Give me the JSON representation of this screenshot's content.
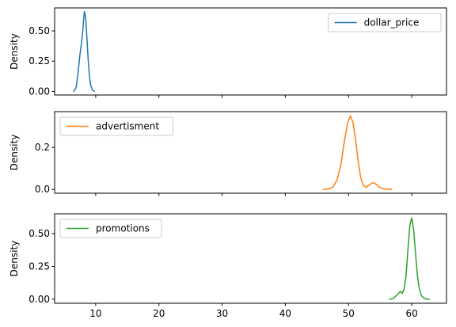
{
  "chart_data": [
    {
      "type": "line",
      "ylabel": "Density",
      "legend_placement": "upper right",
      "xlim": [
        3.5,
        65.5
      ],
      "ylim": [
        -0.03,
        0.69
      ],
      "yticks": [
        0.0,
        0.25,
        0.5
      ],
      "ytick_labels": [
        "0.00",
        "0.25",
        "0.50"
      ],
      "series": [
        {
          "name": "dollar_price",
          "color": "#1f77b4",
          "x": [
            6.5,
            6.9,
            7.2,
            7.5,
            7.7,
            7.9,
            8.1,
            8.2,
            8.4,
            8.6,
            8.8,
            9.0,
            9.2,
            9.5,
            9.8
          ],
          "y": [
            0.0,
            0.03,
            0.15,
            0.3,
            0.38,
            0.47,
            0.6,
            0.66,
            0.62,
            0.45,
            0.27,
            0.13,
            0.05,
            0.01,
            0.0
          ]
        }
      ]
    },
    {
      "type": "line",
      "ylabel": "Density",
      "legend_placement": "upper left",
      "xlim": [
        3.5,
        65.5
      ],
      "ylim": [
        -0.018,
        0.37
      ],
      "yticks": [
        0.0,
        0.2
      ],
      "ytick_labels": [
        "0.0",
        "0.2"
      ],
      "series": [
        {
          "name": "advertisment",
          "color": "#ff7f0e",
          "x": [
            46.0,
            46.8,
            47.5,
            48.2,
            48.8,
            49.4,
            49.9,
            50.3,
            50.7,
            51.1,
            51.5,
            51.9,
            52.3,
            52.8,
            53.3,
            53.8,
            54.3,
            54.8,
            55.5,
            56.2,
            56.8
          ],
          "y": [
            0.0,
            0.002,
            0.01,
            0.045,
            0.12,
            0.24,
            0.32,
            0.35,
            0.32,
            0.24,
            0.14,
            0.06,
            0.02,
            0.01,
            0.022,
            0.032,
            0.026,
            0.012,
            0.003,
            0.001,
            0.0
          ]
        }
      ]
    },
    {
      "type": "line",
      "ylabel": "Density",
      "legend_placement": "upper left",
      "xlim": [
        3.5,
        65.5
      ],
      "ylim": [
        -0.03,
        0.65
      ],
      "yticks": [
        0.0,
        0.25,
        0.5
      ],
      "ytick_labels": [
        "0.00",
        "0.25",
        "0.50"
      ],
      "xticks": [
        10,
        20,
        30,
        40,
        50,
        60
      ],
      "xtick_labels": [
        "10",
        "20",
        "30",
        "40",
        "50",
        "60"
      ],
      "series": [
        {
          "name": "promotions",
          "color": "#2ca02c",
          "x": [
            56.5,
            57.0,
            57.4,
            57.8,
            58.2,
            58.5,
            58.8,
            59.1,
            59.4,
            59.7,
            60.0,
            60.3,
            60.6,
            60.9,
            61.2,
            61.5,
            61.9,
            62.3,
            62.8
          ],
          "y": [
            0.0,
            0.005,
            0.02,
            0.04,
            0.06,
            0.045,
            0.08,
            0.18,
            0.38,
            0.56,
            0.62,
            0.53,
            0.35,
            0.18,
            0.08,
            0.03,
            0.01,
            0.002,
            0.0
          ]
        }
      ]
    }
  ]
}
